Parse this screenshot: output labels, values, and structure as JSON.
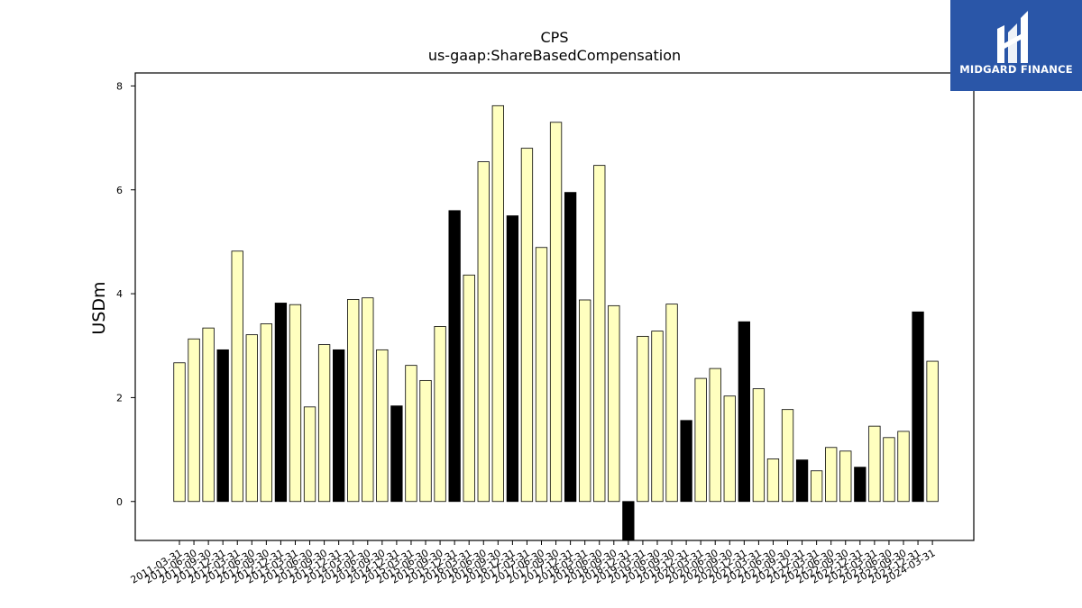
{
  "brand": {
    "name": "MIDGARD FINANCE",
    "accent": "#2a56a8"
  },
  "chart_data": {
    "type": "bar",
    "title": "CPS",
    "subtitle": "us-gaap:ShareBasedCompensation",
    "xlabel": "",
    "ylabel": "USDm",
    "ylim": [
      -0.75,
      8.25
    ],
    "yticks": [
      0,
      2,
      4,
      6,
      8
    ],
    "grid": false,
    "colors": {
      "quarter": "#ffffbf",
      "annual": "#000000"
    },
    "categories": [
      "2011-03-31",
      "2011-06-30",
      "2011-09-30",
      "2011-12-31",
      "2012-03-31",
      "2012-06-30",
      "2012-09-30",
      "2012-12-31",
      "2013-03-31",
      "2013-06-30",
      "2013-09-30",
      "2013-12-31",
      "2014-03-31",
      "2014-06-30",
      "2014-09-30",
      "2014-12-31",
      "2015-03-31",
      "2015-06-30",
      "2015-09-30",
      "2015-12-31",
      "2016-03-31",
      "2016-06-30",
      "2016-09-30",
      "2016-12-31",
      "2017-03-31",
      "2017-06-30",
      "2017-09-30",
      "2017-12-31",
      "2018-03-31",
      "2018-06-30",
      "2018-09-30",
      "2018-12-31",
      "2019-03-31",
      "2019-06-30",
      "2019-09-30",
      "2019-12-31",
      "2020-03-31",
      "2020-06-30",
      "2020-09-30",
      "2020-12-31",
      "2021-03-31",
      "2021-06-30",
      "2021-09-30",
      "2021-12-31",
      "2022-03-31",
      "2022-06-30",
      "2022-09-30",
      "2022-12-31",
      "2023-03-31",
      "2023-06-30",
      "2023-09-30",
      "2023-12-31",
      "2024-03-31"
    ],
    "values": [
      2.67,
      3.13,
      3.34,
      2.92,
      4.82,
      3.21,
      3.42,
      3.82,
      3.79,
      1.82,
      3.02,
      2.92,
      3.89,
      3.92,
      2.92,
      1.84,
      2.62,
      2.33,
      3.37,
      5.6,
      4.36,
      6.54,
      7.62,
      5.5,
      6.8,
      4.89,
      7.3,
      5.95,
      3.88,
      6.47,
      3.77,
      -0.75,
      3.18,
      3.28,
      3.8,
      1.56,
      2.37,
      2.56,
      2.03,
      3.46,
      2.17,
      0.82,
      1.77,
      0.8,
      0.59,
      1.04,
      0.97,
      0.66,
      1.45,
      1.23,
      1.35,
      3.65,
      2.7
    ],
    "fill": [
      "quarter",
      "quarter",
      "quarter",
      "annual",
      "quarter",
      "quarter",
      "quarter",
      "annual",
      "quarter",
      "quarter",
      "quarter",
      "annual",
      "quarter",
      "quarter",
      "quarter",
      "annual",
      "quarter",
      "quarter",
      "quarter",
      "annual",
      "quarter",
      "quarter",
      "quarter",
      "annual",
      "quarter",
      "quarter",
      "quarter",
      "annual",
      "quarter",
      "quarter",
      "quarter",
      "annual",
      "quarter",
      "quarter",
      "quarter",
      "annual",
      "quarter",
      "quarter",
      "quarter",
      "annual",
      "quarter",
      "quarter",
      "quarter",
      "annual",
      "quarter",
      "quarter",
      "quarter",
      "annual",
      "quarter",
      "quarter",
      "quarter",
      "annual",
      "quarter"
    ]
  }
}
